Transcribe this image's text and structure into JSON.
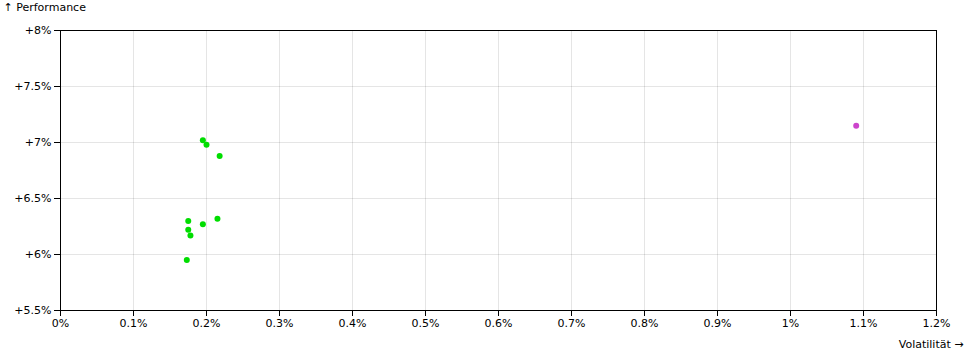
{
  "chart_data": {
    "type": "scatter",
    "xlabel": "Volatilität",
    "ylabel": "Performance",
    "xlim": [
      0,
      0.012
    ],
    "ylim": [
      0.055,
      0.08
    ],
    "xticks": [
      {
        "value": 0,
        "label": "0%"
      },
      {
        "value": 0.001,
        "label": "0.1%"
      },
      {
        "value": 0.002,
        "label": "0.2%"
      },
      {
        "value": 0.003,
        "label": "0.3%"
      },
      {
        "value": 0.004,
        "label": "0.4%"
      },
      {
        "value": 0.005,
        "label": "0.5%"
      },
      {
        "value": 0.006,
        "label": "0.6%"
      },
      {
        "value": 0.007,
        "label": "0.7%"
      },
      {
        "value": 0.008,
        "label": "0.8%"
      },
      {
        "value": 0.009,
        "label": "0.9%"
      },
      {
        "value": 0.01,
        "label": "1%"
      },
      {
        "value": 0.011,
        "label": "1.1%"
      },
      {
        "value": 0.012,
        "label": "1.2%"
      }
    ],
    "yticks": [
      {
        "value": 0.055,
        "label": "+5.5%"
      },
      {
        "value": 0.06,
        "label": "+6%"
      },
      {
        "value": 0.065,
        "label": "+6.5%"
      },
      {
        "value": 0.07,
        "label": "+7%"
      },
      {
        "value": 0.075,
        "label": "+7.5%"
      },
      {
        "value": 0.08,
        "label": "+8%"
      }
    ],
    "grid": true,
    "series": [
      {
        "color": "#00dd00",
        "x": [
          0.00195,
          0.002,
          0.00218,
          0.00175,
          0.00195,
          0.00215,
          0.00175,
          0.00178,
          0.00173
        ],
        "values": [
          0.0702,
          0.0698,
          0.0688,
          0.063,
          0.0627,
          0.0632,
          0.0622,
          0.0617,
          0.0595
        ]
      },
      {
        "color": "#cc44cc",
        "x": [
          0.0109
        ],
        "values": [
          0.0715
        ]
      }
    ]
  }
}
